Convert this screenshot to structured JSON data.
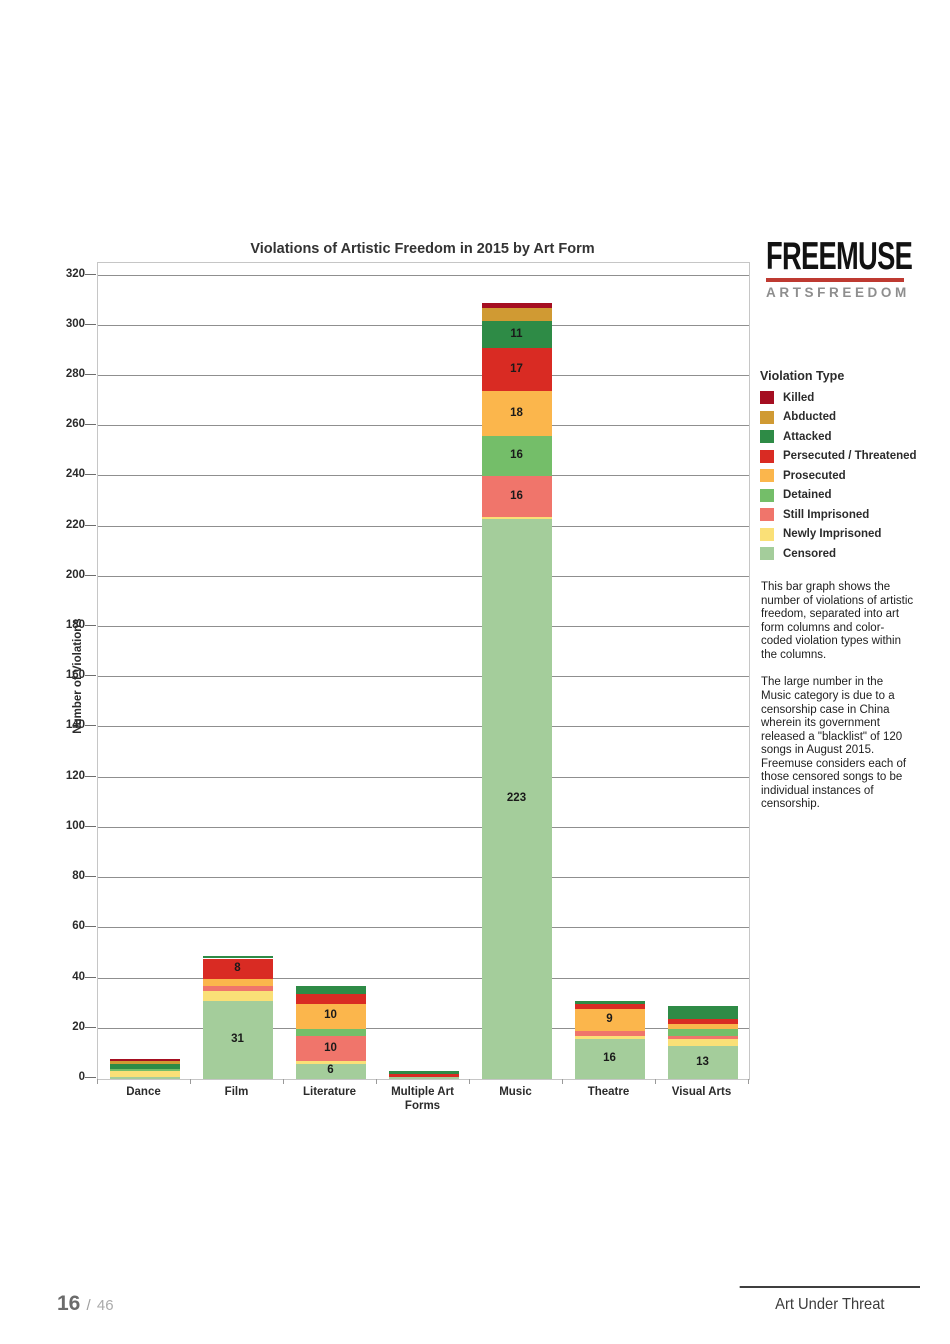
{
  "header": {
    "logo": {
      "text": "FREEMUSE",
      "subtext": "ARTSFREEDOM",
      "bar_color": "#BE3A31"
    }
  },
  "legend": {
    "title": "Violation Type"
  },
  "notes": {
    "para1": "This bar graph shows the number of violations of artistic freedom, separated into art form columns and color-coded violation types within the columns.",
    "para2": "The large number in the Music category is due to a censorship case in China wherein its government released a \"blacklist\" of 120 songs in August 2015. Freemuse considers each of those censored songs to be individual instances of censorship."
  },
  "footer": {
    "page_number": "16",
    "page_separator": "/",
    "page_total": "46",
    "document_title": "Art Under Threat"
  },
  "chart_data": {
    "type": "bar",
    "stacked": true,
    "title": "Violations of Artistic Freedom in 2015 by Art Form",
    "xlabel": "",
    "ylabel": "Number of Violations",
    "ylim": [
      0,
      320
    ],
    "ytick_step": 20,
    "grid": true,
    "legend_position": "right",
    "label_min_value": 6,
    "categories": [
      "Dance",
      "Film",
      "Literature",
      "Multiple Art Forms",
      "Music",
      "Theatre",
      "Visual Arts"
    ],
    "category_totals": [
      8,
      49,
      37,
      3,
      309,
      31,
      29
    ],
    "series_bottom_to_top": [
      {
        "name": "Censored",
        "color": "#A4CD9B",
        "values": [
          1,
          31,
          6,
          1,
          223,
          16,
          13
        ]
      },
      {
        "name": "Newly Imprisoned",
        "color": "#FAE077",
        "values": [
          2,
          4,
          1,
          0,
          1,
          1,
          3
        ]
      },
      {
        "name": "Still Imprisoned",
        "color": "#F0756B",
        "values": [
          0,
          2,
          10,
          0,
          16,
          2,
          1
        ]
      },
      {
        "name": "Detained",
        "color": "#74BE69",
        "values": [
          1,
          0,
          3,
          0,
          16,
          0,
          3
        ]
      },
      {
        "name": "Prosecuted",
        "color": "#FBB64C",
        "values": [
          0,
          3,
          10,
          0,
          18,
          9,
          2
        ]
      },
      {
        "name": "Persecuted / Threatened",
        "color": "#D92B23",
        "values": [
          0,
          8,
          4,
          1,
          17,
          2,
          2
        ]
      },
      {
        "name": "Attacked",
        "color": "#2E8B46",
        "values": [
          2,
          1,
          3,
          1,
          11,
          1,
          5
        ]
      },
      {
        "name": "Abducted",
        "color": "#D09A33",
        "values": [
          1,
          0,
          0,
          0,
          5,
          0,
          0
        ]
      },
      {
        "name": "Killed",
        "color": "#A50E21",
        "values": [
          1,
          0,
          0,
          0,
          2,
          0,
          0
        ]
      }
    ],
    "legend_order_top_to_bottom": [
      "Killed",
      "Abducted",
      "Attacked",
      "Persecuted / Threatened",
      "Prosecuted",
      "Detained",
      "Still Imprisoned",
      "Newly Imprisoned",
      "Censored"
    ]
  }
}
